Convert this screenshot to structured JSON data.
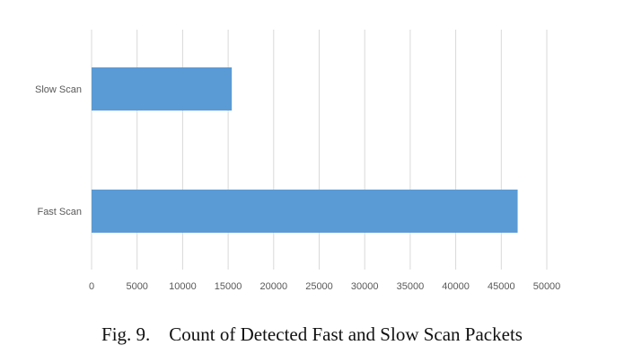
{
  "caption": "Fig. 9.    Count of Detected Fast and Slow Scan Packets",
  "chart_data": {
    "type": "bar",
    "orientation": "horizontal",
    "categories": [
      "Slow Scan",
      "Fast Scan"
    ],
    "values": [
      15400,
      46800
    ],
    "xlim": [
      0,
      50000
    ],
    "xticks": [
      0,
      5000,
      10000,
      15000,
      20000,
      25000,
      30000,
      35000,
      40000,
      45000,
      50000
    ],
    "grid": true,
    "bar_color": "#5b9bd5",
    "grid_color": "#d9d9d9"
  }
}
